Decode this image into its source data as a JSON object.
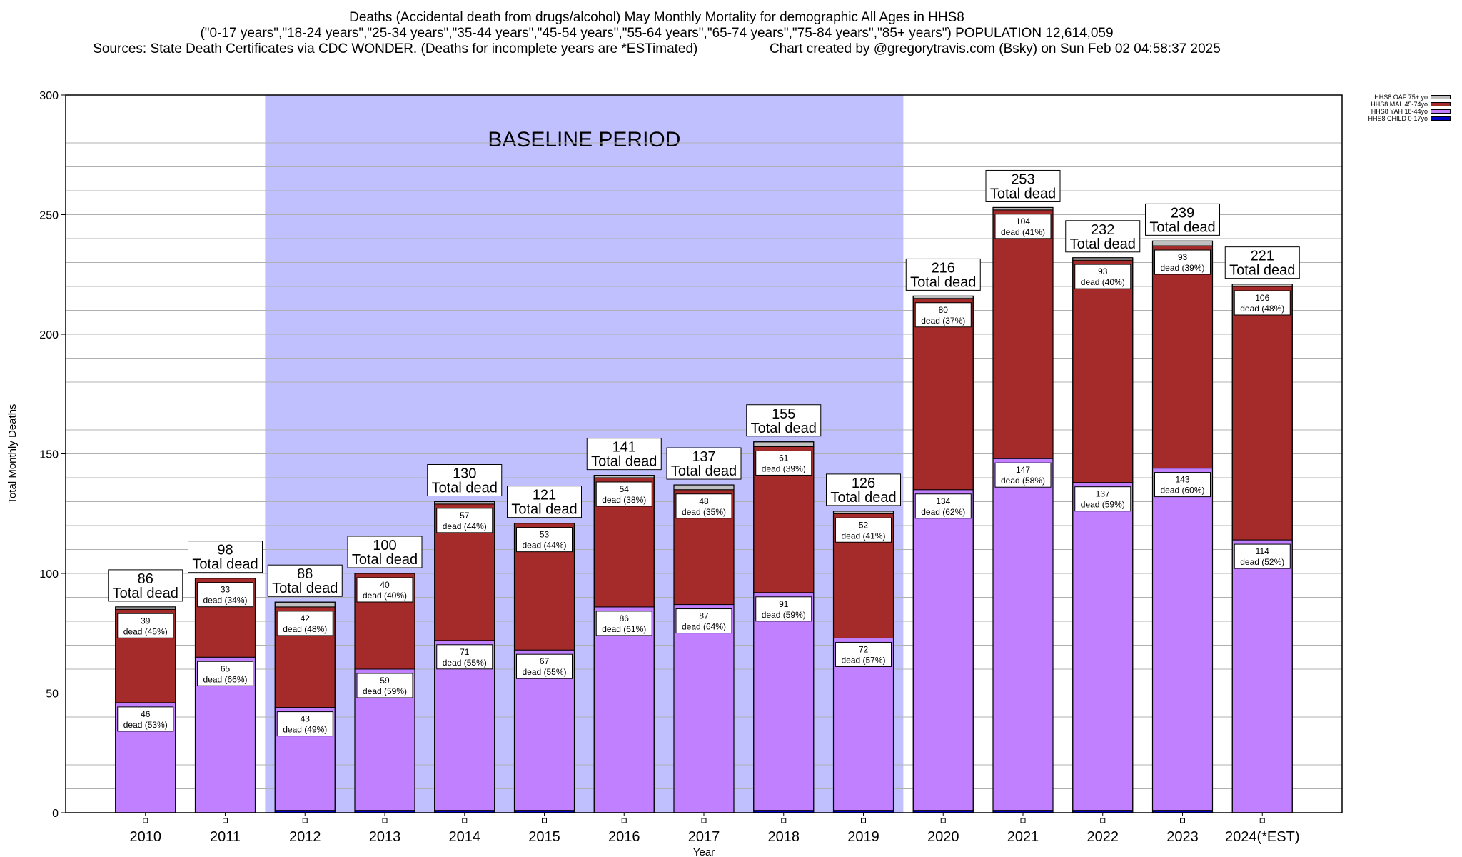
{
  "titles": {
    "line1": "Deaths (Accidental death from drugs/alcohol) May Monthly Mortality for demographic All Ages in HHS8",
    "line2": "(\"0-17 years\",\"18-24 years\",\"25-34 years\",\"35-44 years\",\"45-54 years\",\"55-64 years\",\"65-74 years\",\"75-84 years\",\"85+ years\") POPULATION 12,614,059",
    "line3_left": "Sources: State Death Certificates via CDC WONDER. (Deaths for incomplete years are *ESTimated)",
    "line3_right": "Chart created by @gregorytravis.com (Bsky) on Sun Feb 02 04:58:37 2025"
  },
  "chart_data": {
    "type": "bar",
    "stacked": true,
    "xlabel": "Year",
    "ylabel": "Total Monthly Deaths",
    "ylim": [
      0,
      300
    ],
    "yticks": [
      0,
      50,
      100,
      150,
      200,
      250,
      300
    ],
    "grid": true,
    "legend_position": "top-right",
    "categories": [
      "2010",
      "2011",
      "2012",
      "2013",
      "2014",
      "2015",
      "2016",
      "2017",
      "2018",
      "2019",
      "2020",
      "2021",
      "2022",
      "2023",
      "2024(*EST)"
    ],
    "baseline": {
      "label": "BASELINE PERIOD",
      "from": "2012",
      "to": "2019",
      "color": "#c0c0ff"
    },
    "series": [
      {
        "name": "HHS8 CHILD 0-17yo",
        "color": "#0000c0",
        "values": [
          0,
          0,
          1,
          1,
          1,
          1,
          0,
          0,
          1,
          1,
          1,
          1,
          1,
          1,
          0
        ]
      },
      {
        "name": "HHS8 YAH 18-44yo",
        "color": "#c080ff",
        "values": [
          46,
          65,
          43,
          59,
          71,
          67,
          86,
          87,
          91,
          72,
          134,
          147,
          137,
          143,
          114
        ]
      },
      {
        "name": "HHS8 MAL 45-74yo",
        "color": "#a52a2a",
        "values": [
          39,
          33,
          42,
          40,
          57,
          53,
          54,
          48,
          61,
          52,
          80,
          104,
          93,
          93,
          106
        ]
      },
      {
        "name": "HHS8 OAF 75+ yo",
        "color": "#c0c0c0",
        "values": [
          1,
          0,
          2,
          0,
          1,
          0,
          1,
          2,
          2,
          1,
          1,
          1,
          1,
          2,
          1
        ]
      }
    ],
    "totals": [
      86,
      98,
      88,
      100,
      130,
      121,
      141,
      137,
      155,
      126,
      216,
      253,
      232,
      239,
      221
    ],
    "yah_labels": [
      {
        "n": "46",
        "p": "dead (53%)"
      },
      {
        "n": "65",
        "p": "dead (66%)"
      },
      {
        "n": "43",
        "p": "dead (49%)"
      },
      {
        "n": "59",
        "p": "dead (59%)"
      },
      {
        "n": "71",
        "p": "dead (55%)"
      },
      {
        "n": "67",
        "p": "dead (55%)"
      },
      {
        "n": "86",
        "p": "dead (61%)"
      },
      {
        "n": "87",
        "p": "dead (64%)"
      },
      {
        "n": "91",
        "p": "dead (59%)"
      },
      {
        "n": "72",
        "p": "dead (57%)"
      },
      {
        "n": "134",
        "p": "dead (62%)"
      },
      {
        "n": "147",
        "p": "dead (58%)"
      },
      {
        "n": "137",
        "p": "dead (59%)"
      },
      {
        "n": "143",
        "p": "dead (60%)"
      },
      {
        "n": "114",
        "p": "dead (52%)"
      }
    ],
    "mal_labels": [
      {
        "n": "39",
        "p": "dead (45%)"
      },
      {
        "n": "33",
        "p": "dead (34%)"
      },
      {
        "n": "42",
        "p": "dead (48%)"
      },
      {
        "n": "40",
        "p": "dead (40%)"
      },
      {
        "n": "57",
        "p": "dead (44%)"
      },
      {
        "n": "53",
        "p": "dead (44%)"
      },
      {
        "n": "54",
        "p": "dead (38%)"
      },
      {
        "n": "48",
        "p": "dead (35%)"
      },
      {
        "n": "61",
        "p": "dead (39%)"
      },
      {
        "n": "52",
        "p": "dead (41%)"
      },
      {
        "n": "80",
        "p": "dead (37%)"
      },
      {
        "n": "104",
        "p": "dead (41%)"
      },
      {
        "n": "93",
        "p": "dead (40%)"
      },
      {
        "n": "93",
        "p": "dead (39%)"
      },
      {
        "n": "106",
        "p": "dead (48%)"
      }
    ],
    "total_label_suffix": "Total dead"
  }
}
